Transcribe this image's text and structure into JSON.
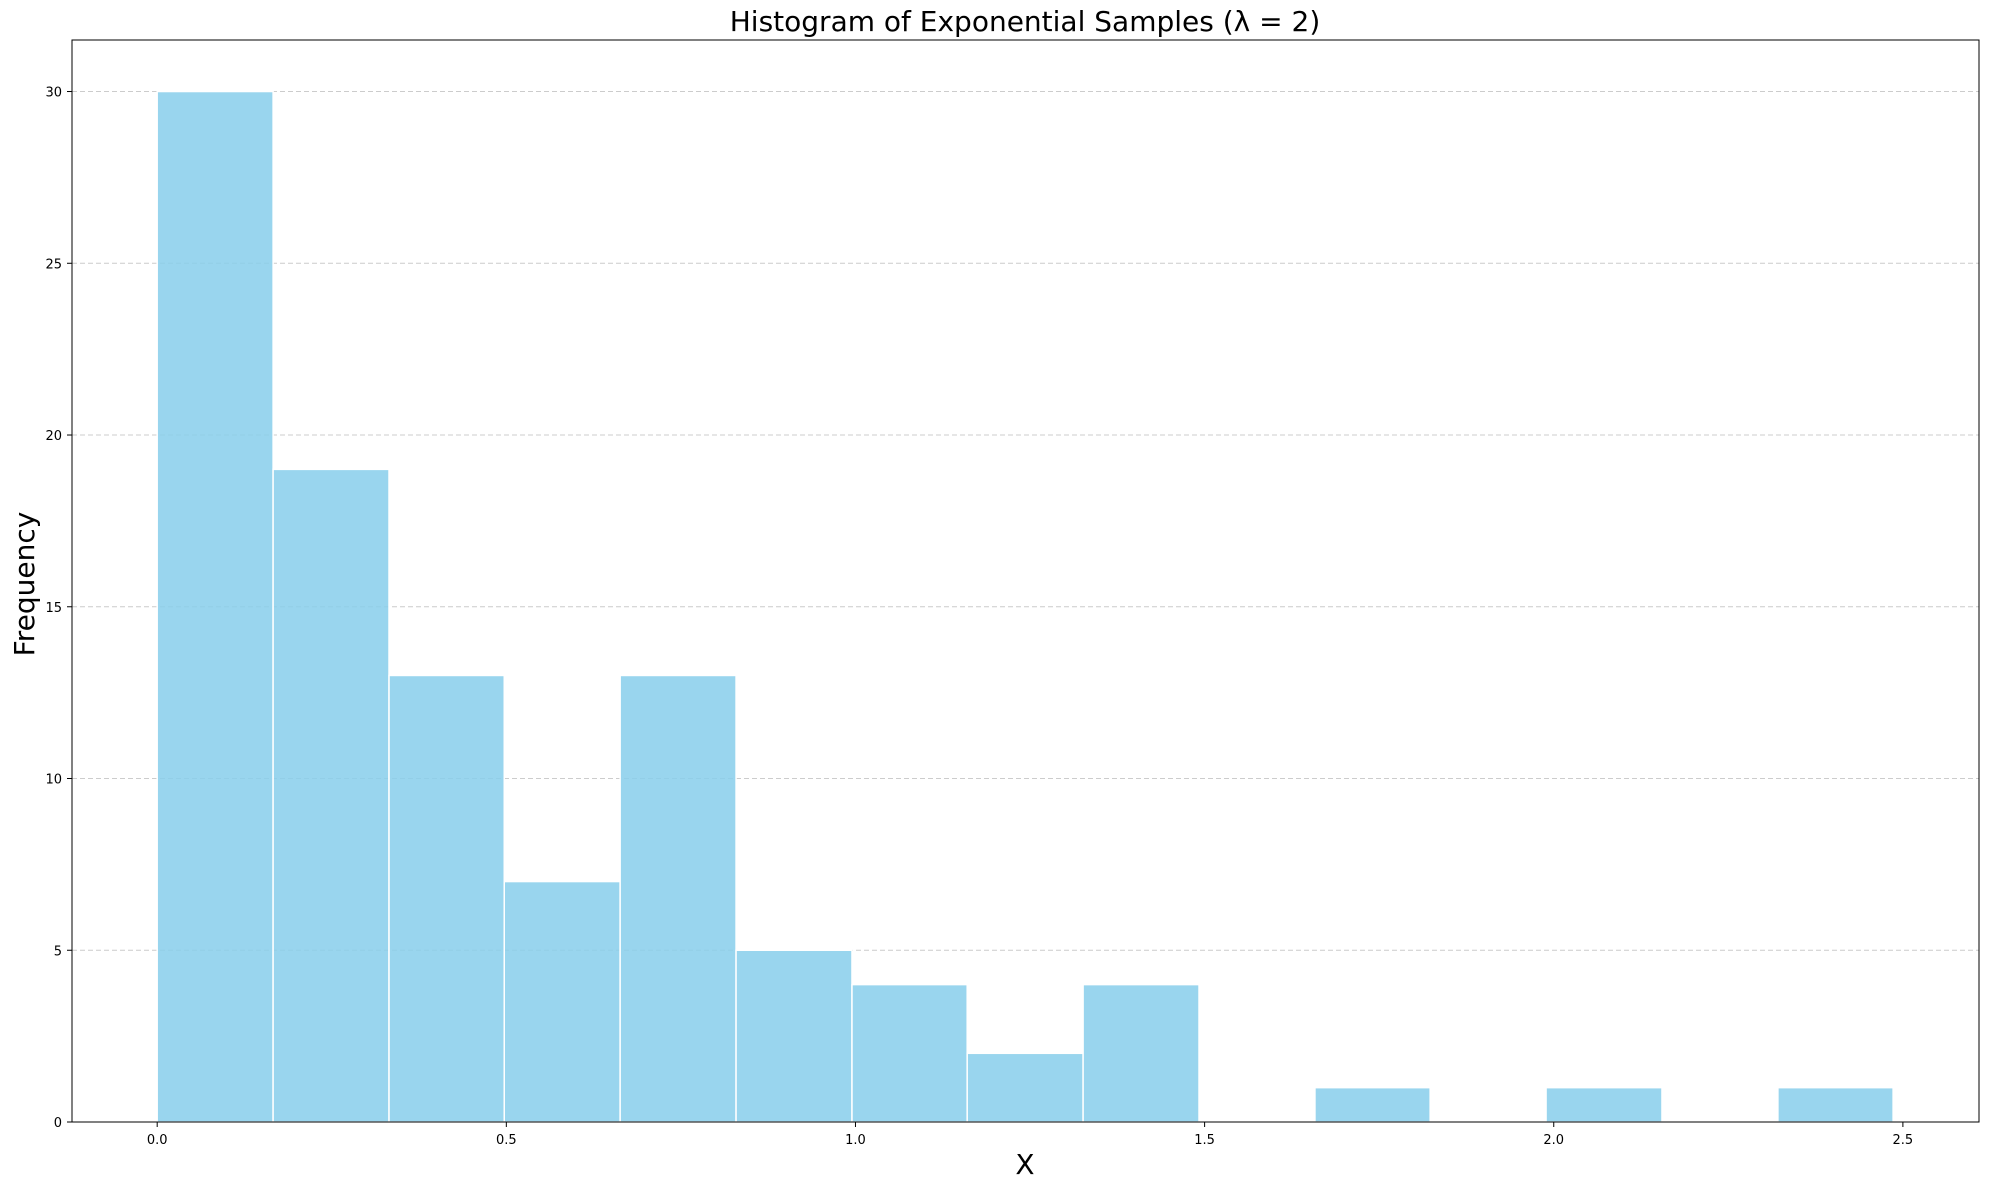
{
  "chart_data": {
    "type": "bar",
    "title": "Histogram of Exponential Samples (λ = 2)",
    "xlabel": "X",
    "ylabel": "Frequency",
    "xlim": [
      -0.122,
      2.609
    ],
    "ylim": [
      0,
      31.5
    ],
    "grid": "y-dashed",
    "bar_color": "#87ceeb",
    "bar_edge_color": "#ffffff",
    "grid_color": "#cccccc",
    "x_ticks": [
      {
        "value": 0.0,
        "label": "0.0"
      },
      {
        "value": 0.5,
        "label": "0.5"
      },
      {
        "value": 1.0,
        "label": "1.0"
      },
      {
        "value": 1.5,
        "label": "1.5"
      },
      {
        "value": 2.0,
        "label": "2.0"
      },
      {
        "value": 2.5,
        "label": "2.5"
      }
    ],
    "y_ticks": [
      {
        "value": 0,
        "label": "0"
      },
      {
        "value": 5,
        "label": "5"
      },
      {
        "value": 10,
        "label": "10"
      },
      {
        "value": 15,
        "label": "15"
      },
      {
        "value": 20,
        "label": "20"
      },
      {
        "value": 25,
        "label": "25"
      },
      {
        "value": 30,
        "label": "30"
      }
    ],
    "bins": [
      {
        "x0": 0.0,
        "x1": 0.166,
        "count": 30
      },
      {
        "x0": 0.166,
        "x1": 0.332,
        "count": 19
      },
      {
        "x0": 0.332,
        "x1": 0.497,
        "count": 13
      },
      {
        "x0": 0.497,
        "x1": 0.663,
        "count": 7
      },
      {
        "x0": 0.663,
        "x1": 0.829,
        "count": 13
      },
      {
        "x0": 0.829,
        "x1": 0.995,
        "count": 5
      },
      {
        "x0": 0.995,
        "x1": 1.16,
        "count": 4
      },
      {
        "x0": 1.16,
        "x1": 1.326,
        "count": 2
      },
      {
        "x0": 1.326,
        "x1": 1.492,
        "count": 4
      },
      {
        "x0": 1.492,
        "x1": 1.658,
        "count": 0
      },
      {
        "x0": 1.658,
        "x1": 1.823,
        "count": 1
      },
      {
        "x0": 1.823,
        "x1": 1.989,
        "count": 0
      },
      {
        "x0": 1.989,
        "x1": 2.155,
        "count": 1
      },
      {
        "x0": 2.155,
        "x1": 2.321,
        "count": 0
      },
      {
        "x0": 2.321,
        "x1": 2.486,
        "count": 1
      }
    ]
  }
}
